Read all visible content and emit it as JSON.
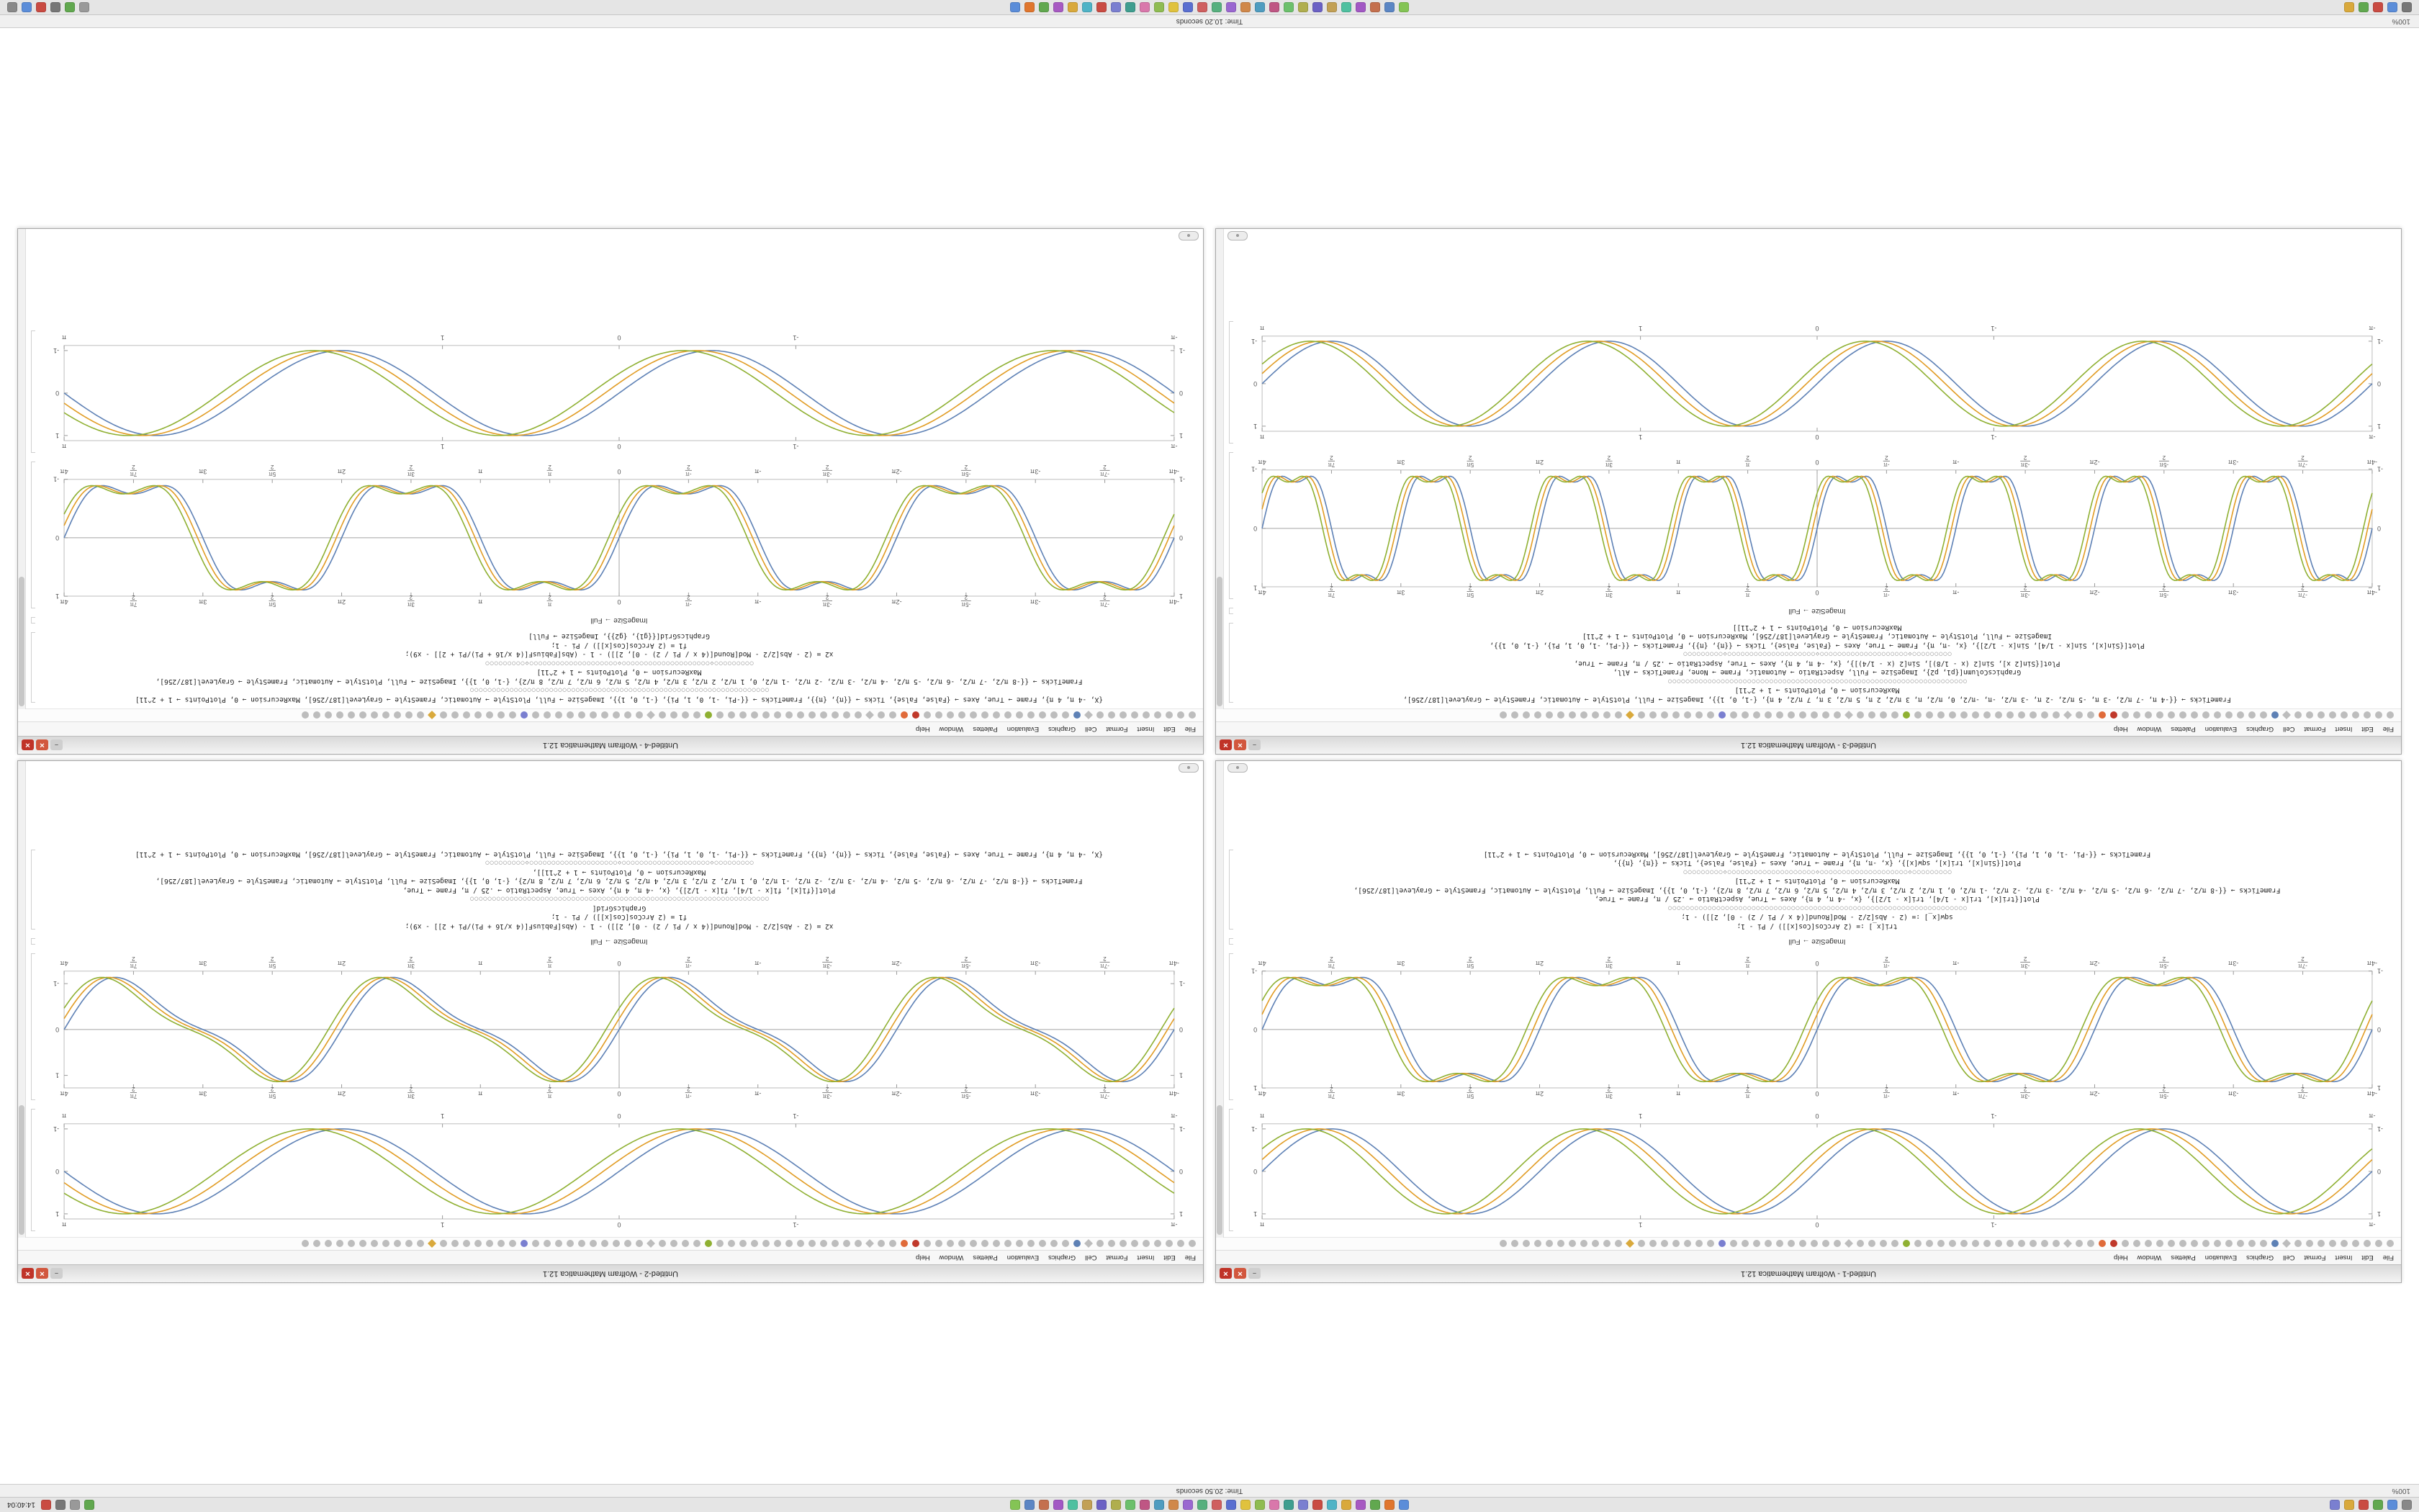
{
  "desktop": {
    "top_panel": {
      "left_icons": [
        "#888888",
        "#5b8dd9",
        "#61a84f",
        "#c94b42",
        "#d9a93c",
        "#7a7fd0"
      ],
      "center_icons": [
        "#5b8dd9",
        "#e0762e",
        "#61a84f",
        "#a75ac2",
        "#d9a93c",
        "#4fb3c6",
        "#c94b42",
        "#7a7fd0",
        "#3f9e8f",
        "#d977ab",
        "#8fbc52",
        "#e0c23e",
        "#5a6fd0",
        "#cf5f5f",
        "#57b07e",
        "#9a67d0",
        "#d0884a",
        "#4f9cc0",
        "#bf5684",
        "#6cc06c",
        "#b0ae4e",
        "#6b61c4",
        "#c2a055",
        "#4fc0a0",
        "#a258c4",
        "#c4704e",
        "#5b86c4",
        "#84c455"
      ],
      "tray_icons": [
        "#61a84f",
        "#999999",
        "#777777",
        "#c94b42"
      ],
      "clock": "14:40:04"
    },
    "top_status": {
      "zoom": "100%",
      "message": "Time: 20.50 seconds"
    },
    "bottom_status": {
      "zoom": "100%",
      "message": "Time: 10.20 seconds"
    },
    "bottom_panel": {
      "left_icons": [
        "#777777",
        "#5b8dd9",
        "#c94b42",
        "#61a84f",
        "#d9a93c"
      ],
      "center_icons": [
        "#84c455",
        "#5b86c4",
        "#c4704e",
        "#a258c4",
        "#4fc0a0",
        "#c2a055",
        "#6b61c4",
        "#b0ae4e",
        "#6cc06c",
        "#bf5684",
        "#4f9cc0",
        "#d0884a",
        "#9a67d0",
        "#57b07e",
        "#cf5f5f",
        "#5a6fd0",
        "#e0c23e",
        "#8fbc52",
        "#d977ab",
        "#3f9e8f",
        "#7a7fd0",
        "#c94b42",
        "#4fb3c6",
        "#d9a93c",
        "#a75ac2",
        "#61a84f",
        "#e0762e",
        "#5b8dd9"
      ],
      "right_icons": [
        "#999999",
        "#61a84f",
        "#777777",
        "#c94b42",
        "#5b8dd9",
        "#888888"
      ]
    }
  },
  "window_chrome": {
    "minimize_glyph": "–",
    "maximize_glyph": "✕",
    "close_glyph": "✕"
  },
  "menu_items": [
    "File",
    "Edit",
    "Insert",
    "Format",
    "Cell",
    "Graphics",
    "Evaluation",
    "Palettes",
    "Window",
    "Help"
  ],
  "toolbar": {
    "count": 78,
    "base_color": "#bdbdbd",
    "accents": {
      "10": "#5e81b5",
      "24": "#c0392b",
      "25": "#e06b3a",
      "42": "#8fb032",
      "58": "#7a7fd0",
      "66": "#d9a93c"
    }
  },
  "plot_colors": [
    "#5e81b5",
    "#e19c24",
    "#8fb032"
  ],
  "windows": [
    {
      "title": "Untitled-1 - Wolfram Mathematica 12.1",
      "widget_side": "right",
      "cells": [
        {
          "type": "plot",
          "id": "framed-ul"
        },
        {
          "type": "plot",
          "id": "axes-ul"
        },
        {
          "type": "caption",
          "text": "ImageSize → Full"
        },
        {
          "type": "code",
          "block": "A"
        }
      ]
    },
    {
      "title": "Untitled-2 - Wolfram Mathematica 12.1",
      "widget_side": "left",
      "cells": [
        {
          "type": "plot",
          "id": "framed-ur"
        },
        {
          "type": "plot",
          "id": "axes-ur"
        },
        {
          "type": "caption",
          "text": "ImageSize → Full"
        },
        {
          "type": "code",
          "block": "C"
        }
      ]
    },
    {
      "title": "Untitled-3 - Wolfram Mathematica 12.1",
      "widget_side": "right",
      "cells": [
        {
          "type": "code",
          "block": "B"
        },
        {
          "type": "caption",
          "text": "ImageSize → Full"
        },
        {
          "type": "plot",
          "id": "axes-ll"
        },
        {
          "type": "plot",
          "id": "framed-ll"
        }
      ]
    },
    {
      "title": "Untitled-4 - Wolfram Mathematica 12.1",
      "widget_side": "left",
      "cells": [
        {
          "type": "code",
          "block": "D"
        },
        {
          "type": "caption",
          "text": "ImageSize → Full"
        },
        {
          "type": "plot",
          "id": "axes-lr"
        },
        {
          "type": "plot",
          "id": "framed-lr"
        }
      ]
    }
  ],
  "code_blocks": {
    "A": [
      "tri[x_] := (2 ArcCos[Cos[x]]) / Pi - 1;",
      "sqw[x_] := (2 - Abs[2/2 - Mod[Round[(4 x / Pi / 2) - 0], 2]]) - 1;",
      "○○○○○○○○○○○○○○○○○○○○○○○○○○○○○○○○○○○○○○○○○○○○○○○○○○○○○○○○○○○○○○○○○○○○",
      "Plot[{tri[x], tri[x - 1/4], tri[x - 1/2]}, {x, -4 π, 4 π}, Axes → True, AspectRatio → .25 / π, Frame → True,",
      "FrameTicks → {{-8 π/2, -7 π/2, -6 π/2, -5 π/2, -4 π/2, -3 π/2, -2 π/2, -1 π/2, 0, 1 π/2, 2 π/2, 3 π/2, 4 π/2, 5 π/2, 6 π/2, 7 π/2, 8 π/2}, {-1, 0, 1}}, ImageSize → Full, PlotStyle → Automatic, FrameStyle → GrayLevel[187/256],",
      "MaxRecursion → 0, PlotPoints → 1 + 2^11]",
      "○○○○○○○○○◇○○○○○○○○○○○○○○○○○○○○◇○○○○○○○○○○○○○○○○○○○○◇○○○○○○○○○",
      "Plot[{Sin[x], tri[x], sqw[x]}, {x, -π, π}, Frame → True, Axes → {False, False}, Ticks → {{π}, {π}},",
      "FrameTicks → {{-Pi, -1, 0, 1, Pi}, {-1, 0, 1}}, ImageSize → Full, PlotStyle → Automatic, FrameStyle → GrayLevel[187/256], MaxRecursion → 0, PlotPoints → 1 + 2^11]"
    ],
    "B": [
      "FrameTicks → {{-4 π, -7 π/2, -3 π, -5 π/2, -2 π, -3 π/2, -π, -π/2, 0, π/2, π, 3 π/2, 2 π, 5 π/2, 3 π, 7 π/2, 4 π}, {-1, 0, 1}}, ImageSize → Full, PlotStyle → Automatic, FrameStyle → GrayLevel[187/256],",
      "MaxRecursion → 0, PlotPoints → 1 + 2^11]",
      "○○○○○○○○○○○○○○○○○○○○○○○○○○○○○○○○○○○○○○○○○○○○○○○○○○○○○○○○○○○○○○○○○○○○",
      "GraphicsColumn[{p1, p2}, ImageSize → Full, AspectRatio → Automatic, Frame → None, FrameTicks → All,",
      "Plot[{Sin[2 x], Sin[2 (x - 1/8)], Sin[2 (x - 1/4)]}, {x, -4 π, 4 π}, Axes → True, AspectRatio → .25 / π, Frame → True,",
      "○○○○○○○○○◇○○○○○○○○○○○○○○○○○○○○◇○○○○○○○○○○○○○○○○○○○○◇○○○○○○○○○",
      "Plot[{Sin[x], Sin[x - 1/4], Sin[x - 1/2]}, {x, -π, π}, Frame → True, Axes → {False, False}, Ticks → {{π}, {π}}, FrameTicks → {{-Pi, -1, 0, 1, Pi}, {-1, 0, 1}},",
      "ImageSize → Full, PlotStyle → Automatic, FrameStyle → GrayLevel[187/256], MaxRecursion → 0, PlotPoints → 1 + 2^11]",
      "MaxRecursion → 0, PlotPoints → 1 + 2^11]]"
    ],
    "C": [
      "x2 = (2 - Abs[2/2 - Mod[Round[(4 x / Pi / 2) - 0], 2]]) - 1 - (Abs[FabiusF[(4 x/16 + Pi)/Pi + 2]] - x9);",
      "f1 = (2 ArcCos[Cos[x]]) / Pi - 1;",
      "GraphicsGrid[",
      "○○○○○○○○○○○○○○○○○○○○○○○○○○○○○○○○○○○○○○○○○○○○○○○○○○○○○○○○○○○○○○○○○○○○",
      "Plot[{f1[x], f1[x - 1/4], f1[x - 1/2]}, {x, -4 π, 4 π}, Axes → True, AspectRatio → .25 / π, Frame → True,",
      "FrameTicks → {{-8 π/2, -7 π/2, -6 π/2, -5 π/2, -4 π/2, -3 π/2, -2 π/2, -1 π/2, 0, 1 π/2, 2 π/2, 3 π/2, 4 π/2, 5 π/2, 6 π/2, 7 π/2, 8 π/2}, {-1, 0, 1}}, ImageSize → Full, PlotStyle → Automatic, FrameStyle → GrayLevel[187/256],",
      "MaxRecursion → 0, PlotPoints → 1 + 2^11]],",
      "○○○○○○○○○◇○○○○○○○○○○○○○○○○○○○○◇○○○○○○○○○○○○○○○○○○○○◇○○○○○○○○○",
      "{X, -4 π, 4 π}, Frame → True, Axes → {False, False}, Ticks → {{π}, {π}}, FrameTicks → {{-Pi, -1, 0, 1, Pi}, {-1, 0, 1}}, ImageSize → Full, PlotStyle → Automatic, FrameStyle → GrayLevel[187/256], MaxRecursion → 0, PlotPoints → 1 + 2^11]"
    ],
    "D": [
      "{X, -4 π, 4 π}, Frame → True, Axes → {False, False}, Ticks → {{π}, {π}}, FrameTicks → {{-Pi, -1, 0, 1, Pi}, {-1, 0, 1}}, ImageSize → Full, PlotStyle → Automatic, FrameStyle → GrayLevel[187/256], MaxRecursion → 0, PlotPoints → 1 + 2^11]",
      "○○○○○○○○○○○○○○○○○○○○○○○○○○○○○○○○○○○○○○○○○○○○○○○○○○○○○○○○○○○○○○○○○○○○",
      "FrameTicks → {{-8 π/2, -7 π/2, -6 π/2, -5 π/2, -4 π/2, -3 π/2, -2 π/2, -1 π/2, 0, 1 π/2, 2 π/2, 3 π/2, 4 π/2, 5 π/2, 6 π/2, 7 π/2, 8 π/2}, {-1, 0, 1}}, ImageSize → Full, PlotStyle → Automatic, FrameStyle → GrayLevel[187/256],",
      "MaxRecursion → 0, PlotPoints → 1 + 2^11]",
      "○○○○○○○○○◇○○○○○○○○○○○○○○○○○○○○◇○○○○○○○○○○○○○○○○○○○○◇○○○○○○○○○",
      "x2 = (2 - Abs[2/2 - Mod[Round[(4 x / Pi / 2) - 0], 2]]) - 1 - (Abs[FabiusF[(4 x/16 + Pi)/Pi + 2]] - x9);",
      "f1 = (2 ArcCos[Cos[x]]) / Pi - 1;",
      "GraphicsGrid[{{g1}, {g2}}, ImageSize → Full]"
    ]
  },
  "chart_data": [
    {
      "id": "framed-ul",
      "type": "line",
      "kind": "framed",
      "x_range": [
        -3.14159,
        3.14159
      ],
      "ylim": [
        -1,
        1
      ],
      "function_terms": [
        [
          1,
          4
        ]
      ],
      "phase_shifts": [
        0,
        0.07,
        0.14
      ],
      "xticks": [
        {
          "v": -3.14159,
          "l": "-π"
        },
        {
          "v": -1,
          "l": "-1"
        },
        {
          "v": 0,
          "l": "0"
        },
        {
          "v": 1,
          "l": "1"
        },
        {
          "v": 3.14159,
          "l": "π"
        }
      ],
      "yticks": [
        {
          "v": -1,
          "l": "-1"
        },
        {
          "v": 0,
          "l": "0"
        },
        {
          "v": 1,
          "l": "1"
        }
      ]
    },
    {
      "id": "axes-ul",
      "type": "line",
      "kind": "axes",
      "x_range": [
        -12.56637,
        12.56637
      ],
      "ylim": [
        -1.3,
        1.3
      ],
      "function_terms": [
        [
          1,
          1
        ],
        [
          0.25,
          3
        ]
      ],
      "phase_shifts": [
        0,
        0.15,
        0.3
      ],
      "xtick_labels": [
        "-4π",
        "-7π/2",
        "-3π",
        "-5π/2",
        "-2π",
        "-3π/2",
        "-π",
        "-π/2",
        "0",
        "π/2",
        "π",
        "3π/2",
        "2π",
        "5π/2",
        "3π",
        "7π/2",
        "4π"
      ],
      "yticks": [
        {
          "v": -1,
          "l": "-1"
        },
        {
          "v": 0,
          "l": "0"
        },
        {
          "v": 1,
          "l": "1"
        }
      ]
    },
    {
      "id": "framed-ur",
      "type": "line",
      "kind": "framed",
      "x_range": [
        -3.14159,
        3.14159
      ],
      "ylim": [
        -1,
        1
      ],
      "function_terms": [
        [
          1,
          3
        ]
      ],
      "phase_shifts": [
        0,
        0.09,
        0.18
      ],
      "xticks": [
        {
          "v": -3.14159,
          "l": "-π"
        },
        {
          "v": -1,
          "l": "-1"
        },
        {
          "v": 0,
          "l": "0"
        },
        {
          "v": 1,
          "l": "1"
        },
        {
          "v": 3.14159,
          "l": "π"
        }
      ],
      "yticks": [
        {
          "v": -1,
          "l": "-1"
        },
        {
          "v": 0,
          "l": "0"
        },
        {
          "v": 1,
          "l": "1"
        }
      ]
    },
    {
      "id": "axes-ur",
      "type": "line",
      "kind": "axes",
      "x_range": [
        -12.56637,
        12.56637
      ],
      "ylim": [
        -1.3,
        1.3
      ],
      "function_terms": [
        [
          1,
          1
        ],
        [
          0.3,
          2
        ]
      ],
      "phase_shifts": [
        0,
        0.15,
        0.3
      ],
      "xtick_labels": [
        "-4π",
        "-7π/2",
        "-3π",
        "-5π/2",
        "-2π",
        "-3π/2",
        "-π",
        "-π/2",
        "0",
        "π/2",
        "π",
        "3π/2",
        "2π",
        "5π/2",
        "3π",
        "7π/2",
        "4π"
      ],
      "yticks": [
        {
          "v": -1,
          "l": "-1"
        },
        {
          "v": 0,
          "l": "0"
        },
        {
          "v": 1,
          "l": "1"
        }
      ]
    },
    {
      "id": "axes-ll",
      "type": "line",
      "kind": "axes",
      "x_range": [
        -12.56637,
        12.56637
      ],
      "ylim": [
        -1.3,
        1.3
      ],
      "function_terms": [
        [
          1,
          2
        ],
        [
          0.22,
          6
        ]
      ],
      "phase_shifts": [
        0,
        0.1,
        0.2
      ],
      "xtick_labels": [
        "-4π",
        "-7π/2",
        "-3π",
        "-5π/2",
        "-2π",
        "-3π/2",
        "-π",
        "-π/2",
        "0",
        "π/2",
        "π",
        "3π/2",
        "2π",
        "5π/2",
        "3π",
        "7π/2",
        "4π"
      ],
      "yticks": [
        {
          "v": -1,
          "l": "-1"
        },
        {
          "v": 0,
          "l": "0"
        },
        {
          "v": 1,
          "l": "1"
        }
      ]
    },
    {
      "id": "framed-ll",
      "type": "line",
      "kind": "framed",
      "x_range": [
        -3.14159,
        3.14159
      ],
      "ylim": [
        -1,
        1
      ],
      "function_terms": [
        [
          1,
          4
        ]
      ],
      "phase_shifts": [
        0,
        0.06,
        0.12
      ],
      "xticks": [
        {
          "v": -3.14159,
          "l": "-π"
        },
        {
          "v": -1,
          "l": "-1"
        },
        {
          "v": 0,
          "l": "0"
        },
        {
          "v": 1,
          "l": "1"
        },
        {
          "v": 3.14159,
          "l": "π"
        }
      ],
      "yticks": [
        {
          "v": -1,
          "l": "-1"
        },
        {
          "v": 0,
          "l": "0"
        },
        {
          "v": 1,
          "l": "1"
        }
      ]
    },
    {
      "id": "axes-lr",
      "type": "line",
      "kind": "axes",
      "x_range": [
        -12.56637,
        12.56637
      ],
      "ylim": [
        -1.3,
        1.3
      ],
      "function_terms": [
        [
          1,
          1
        ],
        [
          0.25,
          3
        ]
      ],
      "phase_shifts": [
        0,
        0.12,
        0.24
      ],
      "xtick_labels": [
        "-4π",
        "-7π/2",
        "-3π",
        "-5π/2",
        "-2π",
        "-3π/2",
        "-π",
        "-π/2",
        "0",
        "π/2",
        "π",
        "3π/2",
        "2π",
        "5π/2",
        "3π",
        "7π/2",
        "4π"
      ],
      "yticks": [
        {
          "v": -1,
          "l": "-1"
        },
        {
          "v": 0,
          "l": "0"
        },
        {
          "v": 1,
          "l": "1"
        }
      ]
    },
    {
      "id": "framed-lr",
      "type": "line",
      "kind": "framed",
      "x_range": [
        -3.14159,
        3.14159
      ],
      "ylim": [
        -1,
        1
      ],
      "function_terms": [
        [
          1,
          3
        ]
      ],
      "phase_shifts": [
        0,
        0.08,
        0.16
      ],
      "xticks": [
        {
          "v": -3.14159,
          "l": "-π"
        },
        {
          "v": -1,
          "l": "-1"
        },
        {
          "v": 0,
          "l": "0"
        },
        {
          "v": 1,
          "l": "1"
        },
        {
          "v": 3.14159,
          "l": "π"
        }
      ],
      "yticks": [
        {
          "v": -1,
          "l": "-1"
        },
        {
          "v": 0,
          "l": "0"
        },
        {
          "v": 1,
          "l": "1"
        }
      ]
    }
  ]
}
